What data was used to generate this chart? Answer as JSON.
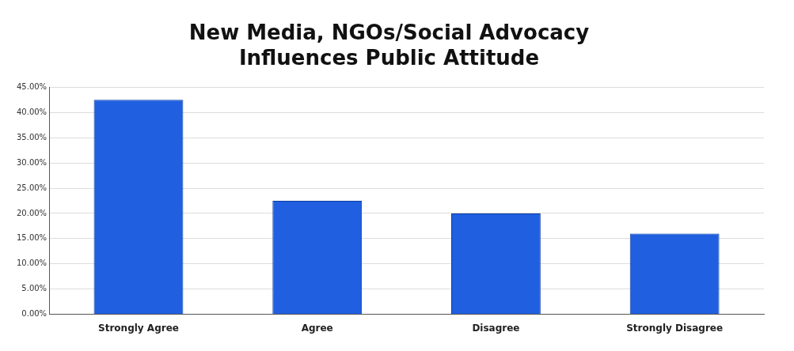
{
  "chart_data": {
    "type": "bar",
    "title": [
      "New Media, NGOs/Social Advocacy",
      "Influences Public Attitude"
    ],
    "categories": [
      "Strongly Agree",
      "Agree",
      "Disagree",
      "Strongly Disagree"
    ],
    "values": [
      42.5,
      22.5,
      20,
      16
    ],
    "color": "#1f5fe0",
    "ylim": [
      0,
      45
    ],
    "yticks": [
      {
        "value": 0,
        "label": "0.00%"
      },
      {
        "value": 5,
        "label": "5.00%"
      },
      {
        "value": 10,
        "label": "10.00%"
      },
      {
        "value": 15,
        "label": "15.00%"
      },
      {
        "value": 20,
        "label": "20.00%"
      },
      {
        "value": 25,
        "label": "25.00%"
      },
      {
        "value": 30,
        "label": "30.00%"
      },
      {
        "value": 35,
        "label": "35.00%"
      },
      {
        "value": 40,
        "label": "40.00%"
      },
      {
        "value": 45,
        "label": "45.00%"
      }
    ],
    "grid": "y"
  }
}
